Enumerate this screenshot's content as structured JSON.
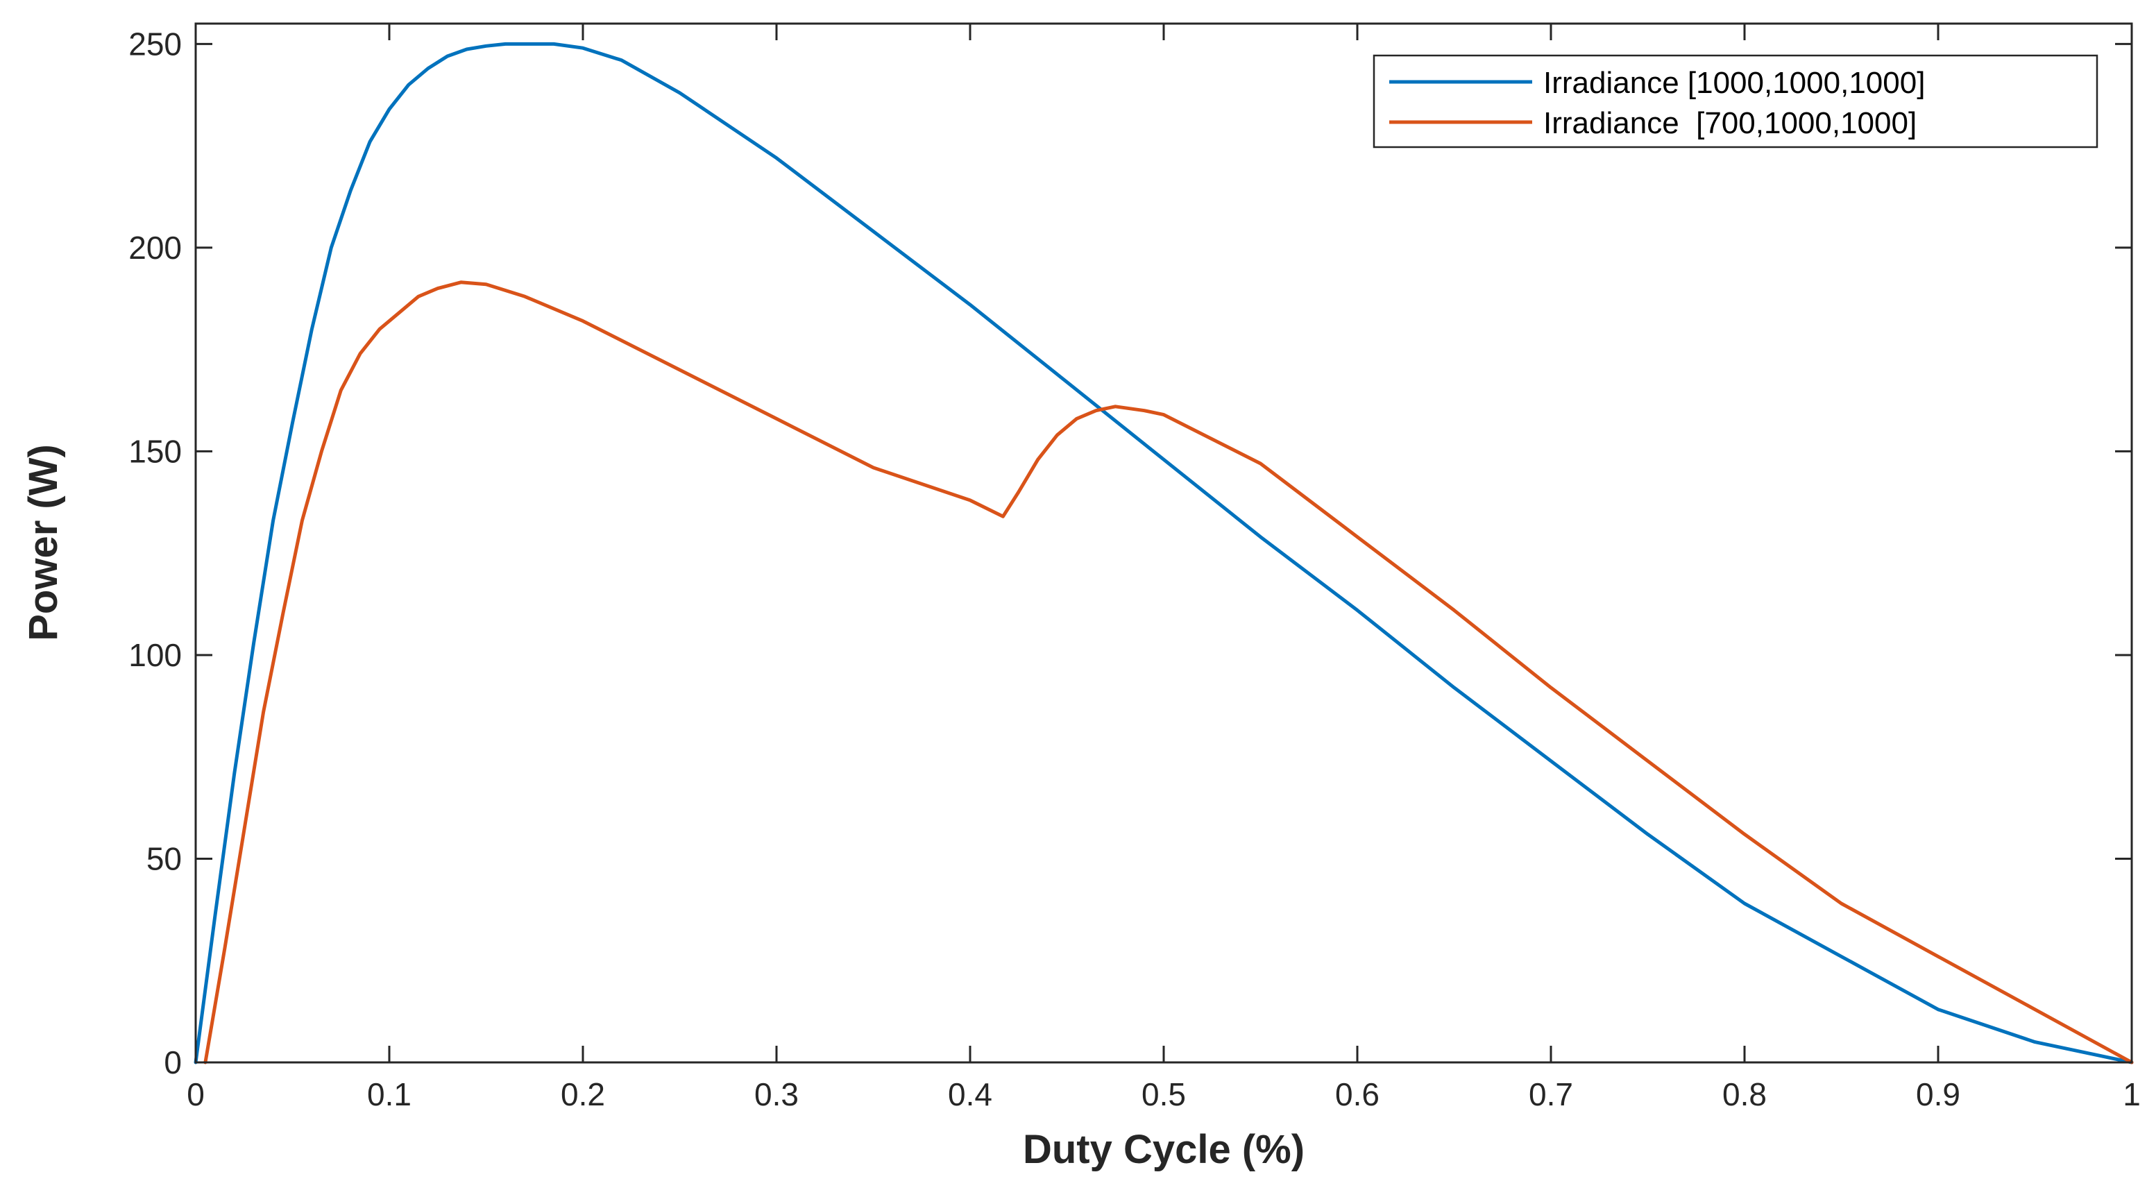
{
  "chart_data": {
    "type": "line",
    "title": "",
    "xlabel": "Duty Cycle (%)",
    "ylabel": "Power (W)",
    "xlim": [
      0,
      1
    ],
    "ylim": [
      0,
      255
    ],
    "xticks": [
      0,
      0.1,
      0.2,
      0.3,
      0.4,
      0.5,
      0.6,
      0.7,
      0.8,
      0.9,
      1
    ],
    "xtick_labels": [
      "0",
      "0.1",
      "0.2",
      "0.3",
      "0.4",
      "0.5",
      "0.6",
      "0.7",
      "0.8",
      "0.9",
      "1"
    ],
    "yticks": [
      0,
      50,
      100,
      150,
      200,
      250
    ],
    "ytick_labels": [
      "0",
      "50",
      "100",
      "150",
      "200",
      "250"
    ],
    "grid": false,
    "legend_position": "top-right",
    "series": [
      {
        "name": "Irradiance [1000,1000,1000]",
        "color": "#0072BD",
        "x": [
          0,
          0.01,
          0.02,
          0.03,
          0.04,
          0.05,
          0.06,
          0.07,
          0.08,
          0.09,
          0.1,
          0.11,
          0.12,
          0.13,
          0.14,
          0.15,
          0.16,
          0.17,
          0.185,
          0.2,
          0.22,
          0.25,
          0.3,
          0.35,
          0.4,
          0.45,
          0.5,
          0.55,
          0.6,
          0.65,
          0.7,
          0.75,
          0.8,
          0.85,
          0.9,
          0.95,
          1.0
        ],
        "y": [
          0,
          36,
          71,
          103,
          133,
          157,
          180,
          200,
          214,
          226,
          234,
          240,
          244,
          247,
          248.7,
          249.5,
          250,
          250,
          250,
          249,
          246,
          238,
          222,
          204,
          186,
          167,
          148,
          129,
          111,
          92,
          74,
          56,
          39,
          26,
          13,
          5,
          0
        ]
      },
      {
        "name": "Irradiance  [700,1000,1000]",
        "color": "#D95319",
        "x": [
          0.005,
          0.015,
          0.025,
          0.035,
          0.045,
          0.055,
          0.065,
          0.075,
          0.085,
          0.095,
          0.105,
          0.115,
          0.125,
          0.137,
          0.15,
          0.17,
          0.2,
          0.25,
          0.3,
          0.35,
          0.4,
          0.417,
          0.425,
          0.435,
          0.445,
          0.455,
          0.465,
          0.475,
          0.49,
          0.5,
          0.55,
          0.6,
          0.65,
          0.7,
          0.75,
          0.8,
          0.85,
          0.9,
          0.95,
          1.0
        ],
        "y": [
          0,
          28,
          57,
          86,
          110,
          133,
          150,
          165,
          174,
          180,
          184,
          188,
          190,
          191.5,
          191,
          188,
          182,
          170,
          158,
          146,
          138,
          134,
          140,
          148,
          154,
          158,
          160,
          161,
          160,
          159,
          147,
          129,
          111,
          92,
          74,
          56,
          39,
          26,
          13,
          0
        ]
      }
    ]
  }
}
